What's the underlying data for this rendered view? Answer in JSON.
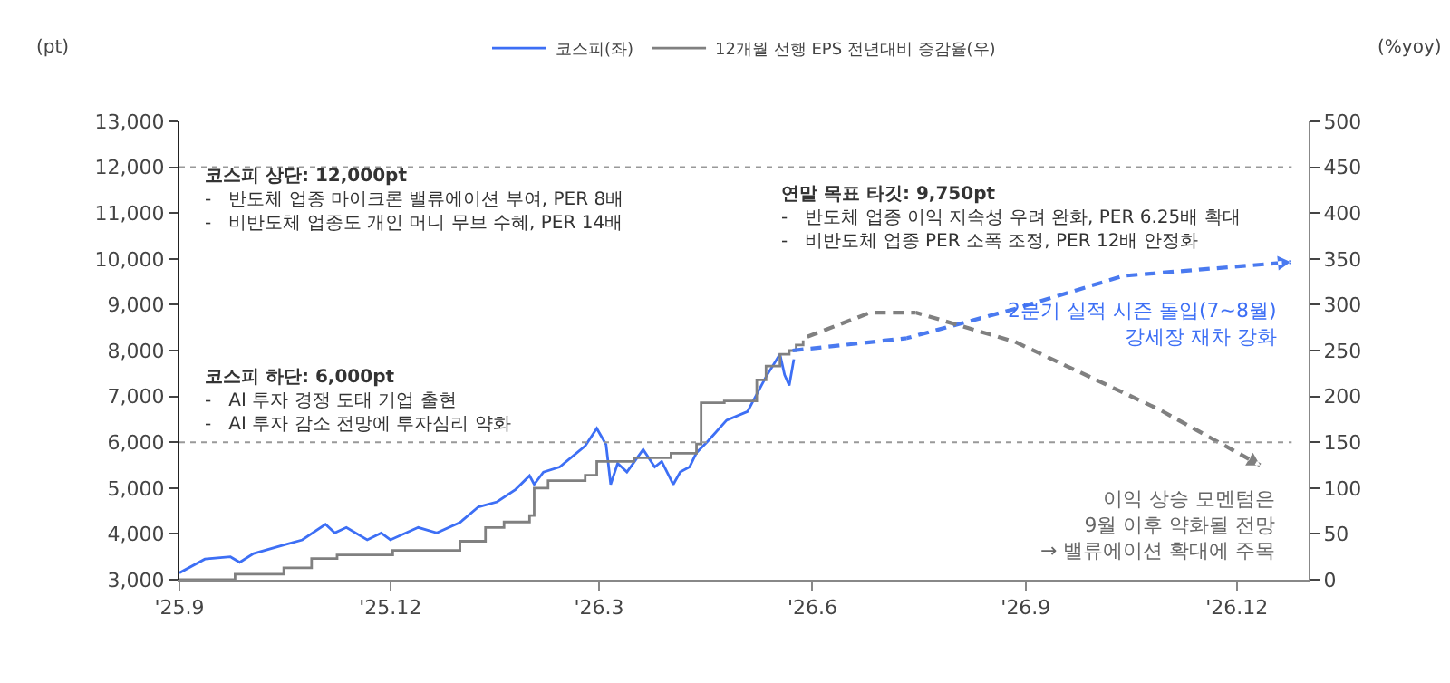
{
  "chart_data": {
    "type": "line",
    "ylabel": "(pt)",
    "y2label": "(%yoy)",
    "xlim": [
      "2025-09-01",
      "2027-01-01"
    ],
    "xticks": [
      {
        "value": "2025-09-01",
        "label": "'25.9"
      },
      {
        "value": "2025-12-01",
        "label": "'25.12"
      },
      {
        "value": "2026-03-01",
        "label": "'26.3"
      },
      {
        "value": "2026-06-01",
        "label": "'26.6"
      },
      {
        "value": "2026-09-01",
        "label": "'26.9"
      },
      {
        "value": "2026-12-01",
        "label": "'26.12"
      }
    ],
    "ylim": [
      3000,
      13000
    ],
    "yticks": [
      {
        "value": 3000,
        "label": "3,000"
      },
      {
        "value": 4000,
        "label": "4,000"
      },
      {
        "value": 5000,
        "label": "5,000"
      },
      {
        "value": 6000,
        "label": "6,000"
      },
      {
        "value": 7000,
        "label": "7,000"
      },
      {
        "value": 8000,
        "label": "8,000"
      },
      {
        "value": 9000,
        "label": "9,000"
      },
      {
        "value": 10000,
        "label": "10,000"
      },
      {
        "value": 11000,
        "label": "11,000"
      },
      {
        "value": 12000,
        "label": "12,000"
      },
      {
        "value": 13000,
        "label": "13,000"
      }
    ],
    "y2lim": [
      0,
      500
    ],
    "y2ticks": [
      0,
      50,
      100,
      150,
      200,
      250,
      300,
      350,
      400,
      450,
      500
    ],
    "legend": "top",
    "marker": "none",
    "series": [
      {
        "name": "코스피(좌)",
        "color": "#3d6ff5",
        "line_style": "solid",
        "x": [
          "2025-09-01",
          "2025-09-12",
          "2025-09-23",
          "2025-09-27",
          "2025-10-03",
          "2025-10-16",
          "2025-10-24",
          "2025-11-03",
          "2025-11-07",
          "2025-11-12",
          "2025-11-21",
          "2025-11-27",
          "2025-12-01",
          "2025-12-13",
          "2025-12-21",
          "2025-12-31",
          "2026-01-08",
          "2026-01-16",
          "2026-01-24",
          "2026-01-30",
          "2026-02-01",
          "2026-02-05",
          "2026-02-12",
          "2026-02-23",
          "2026-02-28",
          "2026-03-04",
          "2026-03-06",
          "2026-03-09",
          "2026-03-13",
          "2026-03-20",
          "2026-03-25",
          "2026-03-28",
          "2026-04-02",
          "2026-04-05",
          "2026-04-09",
          "2026-04-12",
          "2026-04-17",
          "2026-04-25",
          "2026-05-04",
          "2026-05-12",
          "2026-05-18",
          "2026-05-20",
          "2026-05-22",
          "2026-05-24"
        ],
        "values": [
          3150,
          3450,
          3500,
          3380,
          3570,
          3760,
          3870,
          4210,
          4020,
          4140,
          3870,
          4020,
          3870,
          4140,
          4020,
          4250,
          4590,
          4700,
          4970,
          5270,
          5080,
          5350,
          5460,
          5920,
          6300,
          5950,
          5080,
          5540,
          5350,
          5840,
          5460,
          5580,
          5080,
          5350,
          5460,
          5770,
          6030,
          6480,
          6670,
          7430,
          7920,
          7470,
          7240,
          7810
        ]
      },
      {
        "name": "12개월 선행 EPS 전년대비 증감율(우)",
        "color": "#808080",
        "axis": "y2",
        "type": "step",
        "line_style": "solid",
        "x": [
          "2025-09-01",
          "2025-09-17",
          "2025-09-25",
          "2025-10-16",
          "2025-10-28",
          "2025-11-08",
          "2025-12-02",
          "2025-12-31",
          "2026-01-11",
          "2026-01-19",
          "2026-01-30",
          "2026-02-01",
          "2026-02-07",
          "2026-02-23",
          "2026-02-28",
          "2026-03-16",
          "2026-04-01",
          "2026-04-12",
          "2026-04-14",
          "2026-04-24",
          "2026-05-08",
          "2026-05-12",
          "2026-05-18",
          "2026-05-22",
          "2026-05-25",
          "2026-05-28"
        ],
        "values": [
          0,
          0,
          6,
          13,
          23,
          27,
          32,
          42,
          57,
          63,
          70,
          100,
          108,
          114,
          129,
          133,
          138,
          148,
          193,
          195,
          218,
          233,
          246,
          250,
          256,
          261
        ]
      }
    ],
    "ref_lines": [
      {
        "axis": "y",
        "value": 12000,
        "color": "#999999",
        "line_style": "dotted"
      },
      {
        "axis": "y",
        "value": 6000,
        "color": "#999999",
        "line_style": "dotted"
      }
    ],
    "annotations": [
      "코스피 상단: 12,000pt\n-   반도체 업종 마이크론 밸류에이션 부여, PER 8배\n-   비반도체 업종도 개인 머니 무브 수혜, PER 14배",
      "연말 목표 타깃: 9,750pt\n-   반도체 업종 이익 지속성 우려 완화, PER 6.25배 확대\n-   비반도체 업종 PER 소폭 조정, PER 12배 안정화",
      "코스피 하단: 6,000pt\n-   AI 투자 경쟁 도태 기업 출현\n-   AI 투자 감소 전망에 투자심리 약화",
      "2분기 실적 시즌 돌입(7~8월)\n강세장 재차 강화",
      "이익 상승 모멘텀은\n9월 이후 약화될 전망\n→ 밸류에이션 확대에 주목"
    ]
  }
}
